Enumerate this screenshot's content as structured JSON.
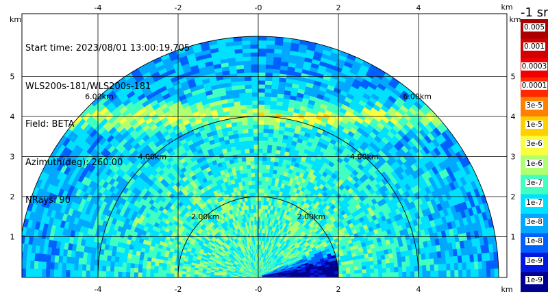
{
  "info": {
    "start_time": "Start time: 2023/08/01 13:00:19.705",
    "instrument": "WLS200s-181/WLS200s-181",
    "field": "Field: BETA",
    "azimuth": "Azimuth(deg): 260.00",
    "nrays": "NRays: 90"
  },
  "chart_data": {
    "type": "heatmap",
    "subtype": "polar-rhi-scan",
    "field": "BETA",
    "unit_label": "-1 sr",
    "axis_unit": "km",
    "xlim": [
      -6,
      6
    ],
    "ylim": [
      0,
      6
    ],
    "x_ticks": [
      -4,
      -2,
      0,
      2,
      4
    ],
    "x_tick_labels": [
      "-4",
      "-2",
      "-0",
      "2",
      "4"
    ],
    "y_ticks": [
      1,
      2,
      3,
      4,
      5
    ],
    "y_tick_labels": [
      "1",
      "2",
      "3",
      "4",
      "5"
    ],
    "range_rings_km": [
      2,
      4,
      6
    ],
    "range_ring_labels": [
      "2.00km",
      "4.00km",
      "6.00km"
    ],
    "grid": true,
    "colorbar": {
      "labels": [
        "0.005",
        "0.001",
        "0.0003",
        "0.0001",
        "3e-5",
        "1e-5",
        "3e-6",
        "1e-6",
        "3e-7",
        "1e-7",
        "3e-8",
        "1e-8",
        "3e-9",
        "1e-9"
      ],
      "colors": [
        "#aa0000",
        "#d40000",
        "#f00000",
        "#ff2800",
        "#ff8000",
        "#ffd000",
        "#f8ff40",
        "#b0ff70",
        "#40ffc0",
        "#00e0ff",
        "#00a8ff",
        "#0060ff",
        "#0018e0",
        "#000090"
      ]
    },
    "regions": [
      {
        "description": "near-field low range",
        "range_km": [
          0,
          2
        ],
        "value": "3e-7"
      },
      {
        "description": "mid range",
        "range_km": [
          2,
          4
        ],
        "value": "1e-7"
      },
      {
        "description": "aerosol layer near 4 km",
        "height_km": 4,
        "value": "3e-6"
      },
      {
        "description": "far range",
        "range_km": [
          4,
          6
        ],
        "value": "3e-8"
      },
      {
        "description": "low-elevation east sector",
        "range_km": [
          0.1,
          1.8
        ],
        "value": "1e-9"
      }
    ]
  }
}
